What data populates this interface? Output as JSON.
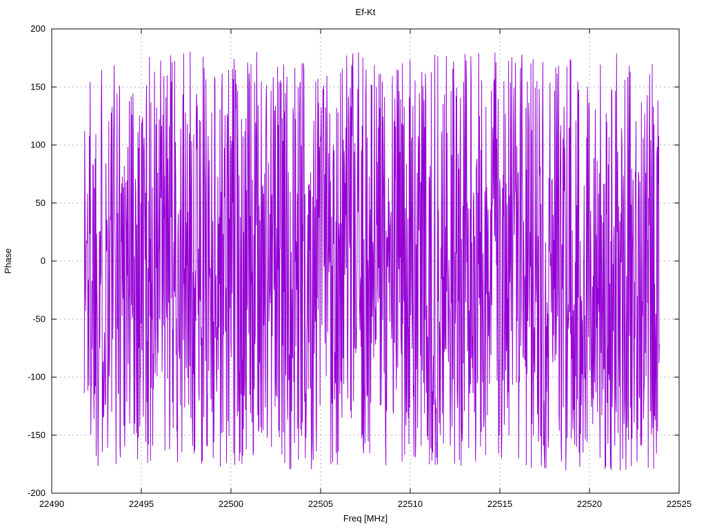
{
  "chart_data": {
    "type": "line",
    "title": "Ef-Kt",
    "xlabel": "Freq [MHz]",
    "ylabel": "Phase",
    "xlim": [
      22490,
      22525
    ],
    "ylim": [
      -200,
      200
    ],
    "x_ticks": [
      22490,
      22495,
      22500,
      22505,
      22510,
      22515,
      22520,
      22525
    ],
    "y_ticks": [
      -200,
      -150,
      -100,
      -50,
      0,
      50,
      100,
      150,
      200
    ],
    "grid": true,
    "grid_style": "dashed",
    "grid_color": "#b0b0b0",
    "legend": "none",
    "background": "#ffffff",
    "border_color": "#000000",
    "series": [
      {
        "name": "phase",
        "color": "#9400d3",
        "line_width": 1,
        "x_start": 22491.8,
        "x_end": 22523.9,
        "n_points": 1600,
        "y_distribution": "uniform",
        "y_min": -180,
        "y_max": 180,
        "seed": 1337,
        "description": "Wrapped fringe phase versus frequency for baseline Ef-Kt; values appear as dense uniform noise spanning -180 to +180 degrees across the whole band"
      }
    ]
  }
}
